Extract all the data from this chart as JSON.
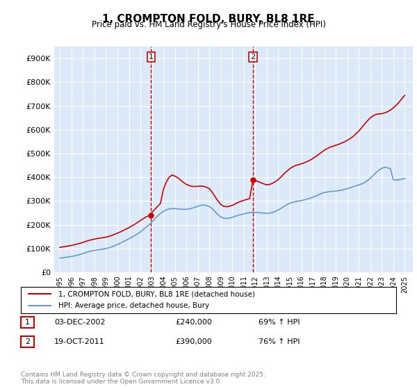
{
  "title": "1, CROMPTON FOLD, BURY, BL8 1RE",
  "subtitle": "Price paid vs. HM Land Registry's House Price Index (HPI)",
  "ylabel": "",
  "ylim": [
    0,
    950000
  ],
  "yticks": [
    0,
    100000,
    200000,
    300000,
    400000,
    500000,
    600000,
    700000,
    800000,
    900000
  ],
  "ytick_labels": [
    "£0",
    "£100K",
    "£200K",
    "£300K",
    "£400K",
    "£500K",
    "£600K",
    "£700K",
    "£800K",
    "£900K"
  ],
  "background_color": "#dce9f8",
  "plot_bg_color": "#dce9f8",
  "line1_color": "#cc0000",
  "line2_color": "#6699cc",
  "marker1_color": "#cc0000",
  "vline_color": "#cc0000",
  "transaction1_x": 2002.92,
  "transaction1_y": 240000,
  "transaction2_x": 2011.79,
  "transaction2_y": 390000,
  "transaction1_label": "1",
  "transaction2_label": "2",
  "legend_line1": "1, CROMPTON FOLD, BURY, BL8 1RE (detached house)",
  "legend_line2": "HPI: Average price, detached house, Bury",
  "table_row1": [
    "1",
    "03-DEC-2002",
    "£240,000",
    "69% ↑ HPI"
  ],
  "table_row2": [
    "2",
    "19-OCT-2011",
    "£390,000",
    "76% ↑ HPI"
  ],
  "footer": "Contains HM Land Registry data © Crown copyright and database right 2025.\nThis data is licensed under the Open Government Licence v3.0.",
  "xlim_start": 1994.5,
  "xlim_end": 2025.7,
  "hpi_years": [
    1995,
    1995.25,
    1995.5,
    1995.75,
    1996,
    1996.25,
    1996.5,
    1996.75,
    1997,
    1997.25,
    1997.5,
    1997.75,
    1998,
    1998.25,
    1998.5,
    1998.75,
    1999,
    1999.25,
    1999.5,
    1999.75,
    2000,
    2000.25,
    2000.5,
    2000.75,
    2001,
    2001.25,
    2001.5,
    2001.75,
    2002,
    2002.25,
    2002.5,
    2002.75,
    2003,
    2003.25,
    2003.5,
    2003.75,
    2004,
    2004.25,
    2004.5,
    2004.75,
    2005,
    2005.25,
    2005.5,
    2005.75,
    2006,
    2006.25,
    2006.5,
    2006.75,
    2007,
    2007.25,
    2007.5,
    2007.75,
    2008,
    2008.25,
    2008.5,
    2008.75,
    2009,
    2009.25,
    2009.5,
    2009.75,
    2010,
    2010.25,
    2010.5,
    2010.75,
    2011,
    2011.25,
    2011.5,
    2011.75,
    2012,
    2012.25,
    2012.5,
    2012.75,
    2013,
    2013.25,
    2013.5,
    2013.75,
    2014,
    2014.25,
    2014.5,
    2014.75,
    2015,
    2015.25,
    2015.5,
    2015.75,
    2016,
    2016.25,
    2016.5,
    2016.75,
    2017,
    2017.25,
    2017.5,
    2017.75,
    2018,
    2018.25,
    2018.5,
    2018.75,
    2019,
    2019.25,
    2019.5,
    2019.75,
    2020,
    2020.25,
    2020.5,
    2020.75,
    2021,
    2021.25,
    2021.5,
    2021.75,
    2022,
    2022.25,
    2022.5,
    2022.75,
    2023,
    2023.25,
    2023.5,
    2023.75,
    2024,
    2024.25,
    2024.5,
    2024.75,
    2025
  ],
  "hpi_values": [
    60000,
    61000,
    63000,
    65000,
    67000,
    69000,
    72000,
    75000,
    79000,
    83000,
    87000,
    90000,
    92000,
    94000,
    96000,
    98000,
    100000,
    103000,
    107000,
    112000,
    117000,
    123000,
    129000,
    135000,
    141000,
    148000,
    155000,
    162000,
    170000,
    180000,
    190000,
    200000,
    212000,
    225000,
    237000,
    248000,
    257000,
    263000,
    267000,
    268000,
    268000,
    267000,
    266000,
    265000,
    265000,
    267000,
    270000,
    274000,
    278000,
    282000,
    283000,
    281000,
    277000,
    268000,
    255000,
    242000,
    233000,
    228000,
    227000,
    228000,
    232000,
    236000,
    240000,
    243000,
    246000,
    249000,
    251000,
    253000,
    252000,
    251000,
    250000,
    249000,
    248000,
    249000,
    252000,
    257000,
    263000,
    270000,
    278000,
    285000,
    291000,
    295000,
    298000,
    300000,
    302000,
    305000,
    308000,
    312000,
    316000,
    321000,
    327000,
    332000,
    336000,
    338000,
    340000,
    341000,
    342000,
    344000,
    346000,
    349000,
    352000,
    356000,
    360000,
    364000,
    368000,
    372000,
    378000,
    386000,
    396000,
    408000,
    420000,
    430000,
    438000,
    442000,
    440000,
    436000,
    390000,
    388000,
    390000,
    393000,
    395000
  ],
  "property_years": [
    1995,
    1995.25,
    1995.5,
    1995.75,
    1996,
    1996.25,
    1996.5,
    1996.75,
    1997,
    1997.25,
    1997.5,
    1997.75,
    1998,
    1998.25,
    1998.5,
    1998.75,
    1999,
    1999.25,
    1999.5,
    1999.75,
    2000,
    2000.25,
    2000.5,
    2000.75,
    2001,
    2001.25,
    2001.5,
    2001.75,
    2002,
    2002.25,
    2002.5,
    2002.75,
    2002.92,
    2003,
    2003.25,
    2003.5,
    2003.75,
    2004,
    2004.25,
    2004.5,
    2004.75,
    2005,
    2005.25,
    2005.5,
    2005.75,
    2006,
    2006.25,
    2006.5,
    2006.75,
    2007,
    2007.25,
    2007.5,
    2007.75,
    2008,
    2008.25,
    2008.5,
    2008.75,
    2009,
    2009.25,
    2009.5,
    2009.75,
    2010,
    2010.25,
    2010.5,
    2010.75,
    2011,
    2011.25,
    2011.5,
    2011.79,
    2012,
    2012.25,
    2012.5,
    2012.75,
    2013,
    2013.25,
    2013.5,
    2013.75,
    2014,
    2014.25,
    2014.5,
    2014.75,
    2015,
    2015.25,
    2015.5,
    2015.75,
    2016,
    2016.25,
    2016.5,
    2016.75,
    2017,
    2017.25,
    2017.5,
    2017.75,
    2018,
    2018.25,
    2018.5,
    2018.75,
    2019,
    2019.25,
    2019.5,
    2019.75,
    2020,
    2020.25,
    2020.5,
    2020.75,
    2021,
    2021.25,
    2021.5,
    2021.75,
    2022,
    2022.25,
    2022.5,
    2022.75,
    2023,
    2023.25,
    2023.5,
    2023.75,
    2024,
    2024.25,
    2024.5,
    2024.75,
    2025
  ],
  "property_values": [
    105000,
    107000,
    109000,
    111000,
    113000,
    116000,
    119000,
    122000,
    126000,
    130000,
    134000,
    137000,
    140000,
    142000,
    144000,
    146000,
    148000,
    151000,
    155000,
    160000,
    165000,
    170000,
    176000,
    182000,
    188000,
    195000,
    202000,
    210000,
    218000,
    226000,
    233000,
    239000,
    240000,
    252000,
    265000,
    278000,
    290000,
    350000,
    380000,
    400000,
    410000,
    405000,
    398000,
    388000,
    378000,
    370000,
    365000,
    362000,
    361000,
    362000,
    363000,
    362000,
    358000,
    352000,
    337000,
    318000,
    300000,
    285000,
    278000,
    276000,
    278000,
    282000,
    288000,
    294000,
    299000,
    303000,
    307000,
    310000,
    390000,
    387000,
    382000,
    377000,
    372000,
    368000,
    370000,
    375000,
    382000,
    391000,
    402000,
    415000,
    426000,
    436000,
    444000,
    450000,
    453000,
    457000,
    461000,
    466000,
    472000,
    479000,
    487000,
    496000,
    505000,
    514000,
    521000,
    527000,
    531000,
    535000,
    539000,
    544000,
    549000,
    556000,
    563000,
    572000,
    583000,
    595000,
    609000,
    624000,
    638000,
    650000,
    659000,
    665000,
    667000,
    668000,
    671000,
    676000,
    683000,
    692000,
    703000,
    716000,
    731000,
    745000
  ]
}
